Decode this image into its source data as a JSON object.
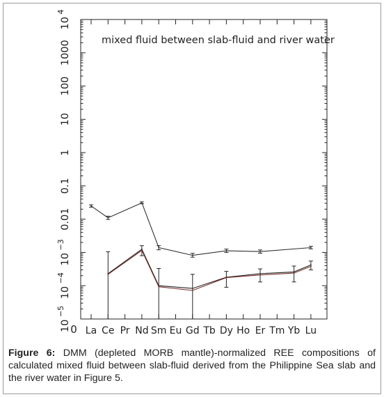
{
  "chart_data": {
    "type": "line",
    "title": "mixed fluid between slab-fluid and river water",
    "yscale": "log",
    "ylim": [
      1e-05,
      10000
    ],
    "y_ticks": [
      {
        "value": 1e-05,
        "label": "10",
        "exp": "−5"
      },
      {
        "value": 0.0001,
        "label": "10",
        "exp": "−4"
      },
      {
        "value": 0.001,
        "label": "10",
        "exp": "−3"
      },
      {
        "value": 0.01,
        "label": "0.01",
        "exp": ""
      },
      {
        "value": 0.1,
        "label": "0.1",
        "exp": ""
      },
      {
        "value": 1,
        "label": "1",
        "exp": ""
      },
      {
        "value": 10,
        "label": "10",
        "exp": ""
      },
      {
        "value": 100,
        "label": "100",
        "exp": ""
      },
      {
        "value": 1000,
        "label": "1000",
        "exp": ""
      },
      {
        "value": 10000,
        "label": "10",
        "exp": "4"
      }
    ],
    "bottom_label": "0",
    "categories": [
      "La",
      "Ce",
      "Pr",
      "Nd",
      "Sm",
      "Eu",
      "Gd",
      "Tb",
      "Dy",
      "Ho",
      "Er",
      "Tm",
      "Yb",
      "Lu"
    ],
    "series": [
      {
        "color": "#333333",
        "points": [
          {
            "x": "La",
            "y": 0.025,
            "lo": 0.023,
            "hi": 0.027
          },
          {
            "x": "Ce",
            "y": 0.011,
            "lo": 0.0098,
            "hi": 0.0123
          },
          {
            "x": "Nd",
            "y": 0.031,
            "lo": 0.029,
            "hi": 0.033
          },
          {
            "x": "Sm",
            "y": 0.0014,
            "lo": 0.0012,
            "hi": 0.0016
          },
          {
            "x": "Gd",
            "y": 0.00082,
            "lo": 0.00072,
            "hi": 0.00094
          },
          {
            "x": "Dy",
            "y": 0.00112,
            "lo": 0.001,
            "hi": 0.00126
          },
          {
            "x": "Er",
            "y": 0.00106,
            "lo": 0.00095,
            "hi": 0.00119
          },
          {
            "x": "Lu",
            "y": 0.0014,
            "lo": 0.00128,
            "hi": 0.00153
          }
        ]
      },
      {
        "color": "#222222",
        "points": [
          {
            "x": "Ce",
            "y": 0.00023,
            "lo": 1e-05,
            "hi": 0.00105
          },
          {
            "x": "Nd",
            "y": 0.00125,
            "lo": 0.0008,
            "hi": 0.0016
          },
          {
            "x": "Sm",
            "y": 0.0001,
            "lo": 1e-05,
            "hi": 0.00033
          },
          {
            "x": "Gd",
            "y": 8.3e-05,
            "lo": 1e-05,
            "hi": 0.00022
          },
          {
            "x": "Dy",
            "y": 0.00018,
            "lo": 9e-05,
            "hi": 0.00027
          },
          {
            "x": "Er",
            "y": 0.00023,
            "lo": 0.00013,
            "hi": 0.00032
          },
          {
            "x": "Yb",
            "y": 0.00026,
            "lo": 0.00013,
            "hi": 0.00039
          },
          {
            "x": "Lu",
            "y": 0.00042,
            "lo": 0.0003,
            "hi": 0.00055
          }
        ]
      },
      {
        "color": "#7a3030",
        "points": [
          {
            "x": "Ce",
            "y": 0.00022
          },
          {
            "x": "Nd",
            "y": 0.00115
          },
          {
            "x": "Sm",
            "y": 9.3e-05
          },
          {
            "x": "Gd",
            "y": 7.2e-05
          },
          {
            "x": "Dy",
            "y": 0.000175
          },
          {
            "x": "Er",
            "y": 0.00021
          },
          {
            "x": "Yb",
            "y": 0.00024
          },
          {
            "x": "Lu",
            "y": 0.00038
          }
        ]
      }
    ]
  },
  "caption": {
    "label": "Figure 6:",
    "text": " DMM (depleted MORB mantle)-normalized REE compositions of calculated mixed fluid between slab-fluid derived from the Philippine Sea slab and the river water in Figure 5."
  }
}
